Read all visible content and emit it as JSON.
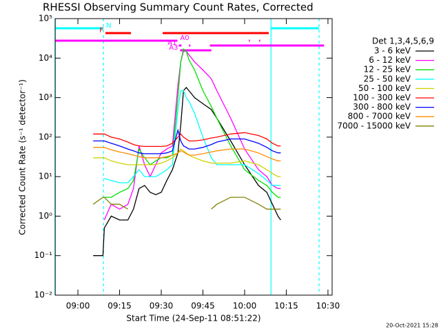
{
  "chart_data": {
    "type": "line",
    "title": "RHESSI Observing Summary Count Rates, Corrected",
    "x_label": "Start Time (24-Sep-11 08:51:22)",
    "y_label": "Corrected Count Rate (s⁻¹ detector⁻¹)",
    "footer": "20-Oct-2021 15:28",
    "legend_title": "Det 1,3,4,5,6,9",
    "legend": "right",
    "log_y": true,
    "xlim": [
      -8.2,
      91.5
    ],
    "xticks": [
      {
        "value": 0,
        "label": "09:00"
      },
      {
        "value": 15,
        "label": "09:15"
      },
      {
        "value": 30,
        "label": "09:30"
      },
      {
        "value": 45,
        "label": "09:45"
      },
      {
        "value": 60,
        "label": "10:00"
      },
      {
        "value": 75,
        "label": "10:15"
      },
      {
        "value": 90,
        "label": "10:30"
      }
    ],
    "ylim": [
      0.01,
      100000
    ],
    "yticks": [
      {
        "value": 0.01,
        "label": "10⁻²"
      },
      {
        "value": 0.1,
        "label": "10⁻¹"
      },
      {
        "value": 1,
        "label": "10⁰"
      },
      {
        "value": 10,
        "label": "10¹"
      },
      {
        "value": 100,
        "label": "10²"
      },
      {
        "value": 1000,
        "label": "10³"
      },
      {
        "value": 10000,
        "label": "10⁴"
      },
      {
        "value": 100000,
        "label": "10⁵"
      }
    ],
    "x": [
      5.5,
      9,
      9.5,
      12,
      15,
      18,
      20,
      22,
      24,
      26,
      28,
      30,
      32,
      34,
      36,
      37,
      38,
      39,
      40,
      42,
      45,
      48,
      50,
      55,
      60,
      65,
      68,
      70,
      72,
      73
    ],
    "series": [
      {
        "name": "3 - 6 keV",
        "color": "#000000",
        "values": [
          0.1,
          0.1,
          0.5,
          1,
          0.8,
          0.8,
          1.5,
          5,
          6,
          4,
          3.5,
          4,
          8,
          15,
          40,
          200,
          1500,
          1800,
          1500,
          1000,
          700,
          500,
          300,
          80,
          20,
          6,
          4,
          2,
          1,
          0.8
        ]
      },
      {
        "name": "6 - 12 keV",
        "color": "#ff00ff",
        "values": [
          null,
          null,
          0.8,
          2,
          1.5,
          2,
          5,
          60,
          20,
          10,
          20,
          40,
          50,
          60,
          2000,
          8000,
          15000,
          15000,
          12000,
          8000,
          5000,
          3000,
          1500,
          300,
          50,
          15,
          10,
          6,
          5,
          5
        ]
      },
      {
        "name": "12 - 25 keV",
        "color": "#00e000",
        "values": [
          null,
          null,
          3,
          3,
          4,
          5,
          8,
          50,
          30,
          20,
          25,
          30,
          30,
          35,
          1000,
          8000,
          17000,
          15000,
          9000,
          5000,
          1500,
          600,
          300,
          60,
          15,
          8,
          6,
          4,
          3,
          3
        ]
      },
      {
        "name": "25 - 50 keV",
        "color": "#00ffff",
        "values": [
          null,
          null,
          9,
          8,
          7,
          7,
          10,
          15,
          10,
          10,
          10,
          12,
          15,
          20,
          500,
          1500,
          1500,
          1000,
          800,
          400,
          100,
          30,
          20,
          20,
          20,
          12,
          8,
          6,
          6,
          6
        ]
      },
      {
        "name": "50 - 100 keV",
        "color": "#d0d000",
        "values": [
          30,
          30,
          30,
          25,
          22,
          20,
          20,
          20,
          20,
          20,
          20,
          22,
          25,
          30,
          40,
          50,
          45,
          40,
          35,
          30,
          25,
          22,
          22,
          22,
          25,
          20,
          15,
          12,
          10,
          10
        ]
      },
      {
        "name": "100 - 300 keV",
        "color": "#ff0000",
        "values": [
          120,
          120,
          120,
          100,
          90,
          75,
          65,
          60,
          58,
          58,
          58,
          58,
          60,
          70,
          100,
          120,
          100,
          90,
          80,
          80,
          85,
          95,
          100,
          120,
          130,
          110,
          90,
          70,
          60,
          60
        ]
      },
      {
        "name": "300 - 800 keV",
        "color": "#0000ff",
        "values": [
          80,
          80,
          80,
          70,
          60,
          50,
          45,
          40,
          38,
          38,
          38,
          38,
          40,
          45,
          150,
          80,
          60,
          55,
          50,
          50,
          55,
          65,
          75,
          90,
          90,
          70,
          55,
          45,
          40,
          40
        ]
      },
      {
        "name": "800 - 7000 keV",
        "color": "#ff8c00",
        "values": [
          55,
          55,
          55,
          48,
          42,
          38,
          35,
          32,
          30,
          30,
          30,
          30,
          32,
          35,
          40,
          45,
          42,
          38,
          35,
          35,
          38,
          42,
          45,
          50,
          50,
          40,
          32,
          28,
          25,
          25
        ]
      },
      {
        "name": "7000 - 15000 keV",
        "color": "#808000",
        "values": [
          2,
          3,
          3,
          2,
          2,
          1.5,
          null,
          null,
          null,
          null,
          null,
          null,
          null,
          null,
          null,
          null,
          null,
          null,
          null,
          null,
          null,
          1.5,
          2,
          3,
          3,
          2,
          1.5,
          1.5,
          1.5,
          1.5
        ]
      }
    ],
    "flags": [
      {
        "label": "N",
        "color": "#00ffff",
        "segments": [
          [
            -8.2,
            9.2
          ],
          [
            69.5,
            86.8
          ]
        ]
      },
      {
        "label": "F",
        "color": "#ff0000",
        "segments": [
          [
            9.9,
            19.1
          ],
          [
            30.5,
            68.7
          ]
        ]
      },
      {
        "label": "A0",
        "color": "#ff00ff",
        "segments": [
          [
            -8.2,
            35.8
          ],
          [
            61.5,
            61.9
          ],
          [
            65.2,
            65.6
          ]
        ]
      },
      {
        "label": "A1",
        "color": "#ff00ff",
        "segments": [
          [
            36.3,
            37.3
          ],
          [
            40,
            40.5
          ],
          [
            47.5,
            88.6
          ]
        ]
      },
      {
        "label": "A3",
        "color": "#ff00ff",
        "segments": [
          [
            36.8,
            48
          ]
        ]
      }
    ],
    "vlines": [
      {
        "x": -8.1,
        "color": "#00ffff",
        "dashed": false
      },
      {
        "x": 69.5,
        "color": "#00ffff",
        "dashed": false
      },
      {
        "x": 9.2,
        "color": "#00ffff",
        "dashed": true
      },
      {
        "x": 86.8,
        "color": "#00ffff",
        "dashed": true
      }
    ]
  }
}
